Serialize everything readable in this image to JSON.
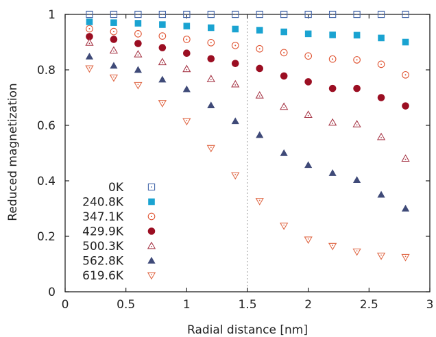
{
  "chart_data": {
    "type": "scatter",
    "title": "",
    "xlabel": "Radial distance [nm]",
    "ylabel": "Reduced magnetization",
    "xlim": [
      0,
      3
    ],
    "ylim": [
      0,
      1
    ],
    "xticks": [
      0,
      0.5,
      1,
      1.5,
      2,
      2.5,
      3
    ],
    "xtick_labels": [
      "0",
      "0.5",
      "1",
      "1.5",
      "2",
      "2.5",
      "3"
    ],
    "yticks": [
      0,
      0.2,
      0.4,
      0.6,
      0.8,
      1
    ],
    "ytick_labels": [
      "0",
      "0.2",
      "0.4",
      "0.6",
      "0.8",
      "1"
    ],
    "grid": false,
    "reference_line": {
      "x": 1.5,
      "style": "dotted"
    },
    "legend_position": "bottom-left",
    "x": [
      0.2,
      0.4,
      0.6,
      0.8,
      1.0,
      1.2,
      1.4,
      1.6,
      1.8,
      2.0,
      2.2,
      2.4,
      2.6,
      2.8
    ],
    "series": [
      {
        "name": "0K",
        "marker": "square-open-dot",
        "color": "#4466aa",
        "values": [
          1,
          1,
          1,
          1,
          1,
          1,
          1,
          1,
          1,
          1,
          1,
          1,
          1,
          1
        ]
      },
      {
        "name": "240.8K",
        "marker": "square-filled",
        "color": "#1aa3d1",
        "values": [
          0.973,
          0.97,
          0.968,
          0.963,
          0.958,
          0.952,
          0.947,
          0.943,
          0.937,
          0.93,
          0.926,
          0.925,
          0.915,
          0.9
        ]
      },
      {
        "name": "347.1K",
        "marker": "circle-open-dot",
        "color": "#e05533",
        "values": [
          0.948,
          0.938,
          0.93,
          0.922,
          0.91,
          0.898,
          0.888,
          0.876,
          0.862,
          0.85,
          0.839,
          0.836,
          0.82,
          0.782
        ]
      },
      {
        "name": "429.9K",
        "marker": "circle-filled",
        "color": "#9b0e22",
        "values": [
          0.92,
          0.91,
          0.895,
          0.88,
          0.86,
          0.84,
          0.823,
          0.805,
          0.778,
          0.757,
          0.733,
          0.733,
          0.7,
          0.67
        ]
      },
      {
        "name": "500.3K",
        "marker": "triangle-open-dot",
        "color": "#a83a4a",
        "values": [
          0.898,
          0.87,
          0.856,
          0.828,
          0.803,
          0.767,
          0.748,
          0.708,
          0.667,
          0.638,
          0.61,
          0.604,
          0.558,
          0.48
        ]
      },
      {
        "name": "562.8K",
        "marker": "triangle-filled",
        "color": "#3f4a78",
        "values": [
          0.848,
          0.815,
          0.8,
          0.765,
          0.73,
          0.672,
          0.615,
          0.565,
          0.5,
          0.457,
          0.428,
          0.403,
          0.35,
          0.3
        ]
      },
      {
        "name": "619.6K",
        "marker": "triangle-down-open-dot",
        "color": "#e06a48",
        "values": [
          0.805,
          0.772,
          0.745,
          0.68,
          0.615,
          0.518,
          0.42,
          0.327,
          0.238,
          0.188,
          0.165,
          0.145,
          0.13,
          0.125
        ]
      }
    ]
  }
}
